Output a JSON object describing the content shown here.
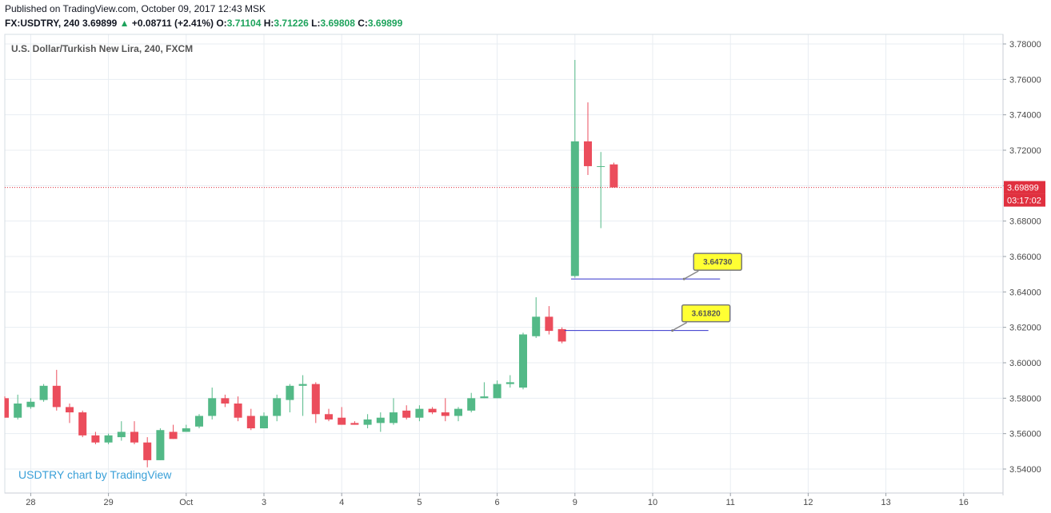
{
  "header": {
    "published": "Published on TradingView.com, October 09, 2017 12:43 MSK",
    "symbol": "FX:USDTRY, 240",
    "last": "3.69899",
    "arrow": "▲",
    "change": "+0.08711 (+2.41%)",
    "o_label": "O:",
    "o": "3.71104",
    "h_label": "H:",
    "h": "3.71226",
    "l_label": "L:",
    "l": "3.69808",
    "c_label": "C:",
    "c": "3.69899"
  },
  "colors": {
    "up": "#53b987",
    "down": "#eb4d5c",
    "grid": "#e8edf2",
    "price_line": "#e0303f",
    "hline": "#3333cc",
    "callout_fill": "#ffff33"
  },
  "chart_data": {
    "type": "candlestick",
    "title": "U.S. Dollar/Turkish New Lira, 240, FXCM",
    "watermark": "USDTRY chart by TradingView",
    "ylim": [
      3.535,
      3.782
    ],
    "y_ticks": [
      "3.78000",
      "3.76000",
      "3.74000",
      "3.72000",
      "3.70000",
      "3.68000",
      "3.66000",
      "3.64000",
      "3.62000",
      "3.60000",
      "3.58000",
      "3.56000",
      "3.54000"
    ],
    "y_tick_values": [
      3.78,
      3.76,
      3.74,
      3.72,
      3.7,
      3.68,
      3.66,
      3.64,
      3.62,
      3.6,
      3.58,
      3.56,
      3.54
    ],
    "x_ticks": [
      "28",
      "29",
      "Oct",
      "3",
      "4",
      "5",
      "6",
      "9",
      "10",
      "11",
      "12",
      "13",
      "16"
    ],
    "x_tick_bars": [
      2,
      8,
      14,
      20,
      26,
      32,
      38,
      44,
      50,
      56,
      62,
      68,
      74
    ],
    "grid": true,
    "last_price": {
      "value": 3.69899,
      "label": "3.69899",
      "countdown": "03:17:02"
    },
    "candles": [
      {
        "o": 3.58,
        "h": 3.581,
        "l": 3.569,
        "c": 3.569
      },
      {
        "o": 3.569,
        "h": 3.582,
        "l": 3.568,
        "c": 3.577
      },
      {
        "o": 3.575,
        "h": 3.58,
        "l": 3.574,
        "c": 3.578
      },
      {
        "o": 3.579,
        "h": 3.588,
        "l": 3.578,
        "c": 3.587
      },
      {
        "o": 3.587,
        "h": 3.596,
        "l": 3.573,
        "c": 3.575
      },
      {
        "o": 3.575,
        "h": 3.577,
        "l": 3.566,
        "c": 3.572
      },
      {
        "o": 3.572,
        "h": 3.573,
        "l": 3.558,
        "c": 3.559
      },
      {
        "o": 3.559,
        "h": 3.561,
        "l": 3.554,
        "c": 3.555
      },
      {
        "o": 3.555,
        "h": 3.56,
        "l": 3.554,
        "c": 3.559
      },
      {
        "o": 3.558,
        "h": 3.567,
        "l": 3.556,
        "c": 3.561
      },
      {
        "o": 3.561,
        "h": 3.567,
        "l": 3.554,
        "c": 3.555
      },
      {
        "o": 3.555,
        "h": 3.558,
        "l": 3.541,
        "c": 3.545
      },
      {
        "o": 3.545,
        "h": 3.563,
        "l": 3.545,
        "c": 3.562
      },
      {
        "o": 3.561,
        "h": 3.565,
        "l": 3.557,
        "c": 3.557
      },
      {
        "o": 3.561,
        "h": 3.565,
        "l": 3.561,
        "c": 3.563
      },
      {
        "o": 3.564,
        "h": 3.571,
        "l": 3.563,
        "c": 3.57
      },
      {
        "o": 3.57,
        "h": 3.586,
        "l": 3.568,
        "c": 3.58
      },
      {
        "o": 3.58,
        "h": 3.582,
        "l": 3.575,
        "c": 3.577
      },
      {
        "o": 3.577,
        "h": 3.581,
        "l": 3.567,
        "c": 3.569
      },
      {
        "o": 3.57,
        "h": 3.574,
        "l": 3.562,
        "c": 3.563
      },
      {
        "o": 3.563,
        "h": 3.572,
        "l": 3.563,
        "c": 3.57
      },
      {
        "o": 3.57,
        "h": 3.582,
        "l": 3.567,
        "c": 3.58
      },
      {
        "o": 3.579,
        "h": 3.588,
        "l": 3.572,
        "c": 3.587
      },
      {
        "o": 3.587,
        "h": 3.593,
        "l": 3.57,
        "c": 3.588
      },
      {
        "o": 3.588,
        "h": 3.589,
        "l": 3.566,
        "c": 3.571
      },
      {
        "o": 3.571,
        "h": 3.574,
        "l": 3.567,
        "c": 3.568
      },
      {
        "o": 3.569,
        "h": 3.575,
        "l": 3.565,
        "c": 3.565
      },
      {
        "o": 3.566,
        "h": 3.567,
        "l": 3.565,
        "c": 3.565
      },
      {
        "o": 3.565,
        "h": 3.571,
        "l": 3.563,
        "c": 3.568
      },
      {
        "o": 3.566,
        "h": 3.572,
        "l": 3.561,
        "c": 3.569
      },
      {
        "o": 3.566,
        "h": 3.58,
        "l": 3.565,
        "c": 3.572
      },
      {
        "o": 3.573,
        "h": 3.576,
        "l": 3.568,
        "c": 3.569
      },
      {
        "o": 3.569,
        "h": 3.576,
        "l": 3.567,
        "c": 3.574
      },
      {
        "o": 3.574,
        "h": 3.575,
        "l": 3.571,
        "c": 3.572
      },
      {
        "o": 3.572,
        "h": 3.58,
        "l": 3.567,
        "c": 3.57
      },
      {
        "o": 3.57,
        "h": 3.575,
        "l": 3.567,
        "c": 3.574
      },
      {
        "o": 3.573,
        "h": 3.583,
        "l": 3.572,
        "c": 3.58
      },
      {
        "o": 3.58,
        "h": 3.589,
        "l": 3.58,
        "c": 3.581
      },
      {
        "o": 3.58,
        "h": 3.59,
        "l": 3.58,
        "c": 3.588
      },
      {
        "o": 3.588,
        "h": 3.593,
        "l": 3.586,
        "c": 3.589
      },
      {
        "o": 3.586,
        "h": 3.617,
        "l": 3.585,
        "c": 3.616
      },
      {
        "o": 3.615,
        "h": 3.637,
        "l": 3.614,
        "c": 3.626
      },
      {
        "o": 3.626,
        "h": 3.632,
        "l": 3.616,
        "c": 3.618
      },
      {
        "o": 3.619,
        "h": 3.62,
        "l": 3.611,
        "c": 3.612
      },
      {
        "o": 3.649,
        "h": 3.771,
        "l": 3.648,
        "c": 3.725
      },
      {
        "o": 3.725,
        "h": 3.747,
        "l": 3.706,
        "c": 3.711
      },
      {
        "o": 3.711,
        "h": 3.719,
        "l": 3.676,
        "c": 3.711
      },
      {
        "o": 3.712,
        "h": 3.713,
        "l": 3.699,
        "c": 3.699
      }
    ],
    "horizontal_lines": [
      {
        "value": 3.6473,
        "label": "3.64730",
        "from_bar": 43.7,
        "to_bar": 55.2
      },
      {
        "value": 3.6182,
        "label": "3.61820",
        "from_bar": 43.2,
        "to_bar": 54.3
      }
    ]
  }
}
